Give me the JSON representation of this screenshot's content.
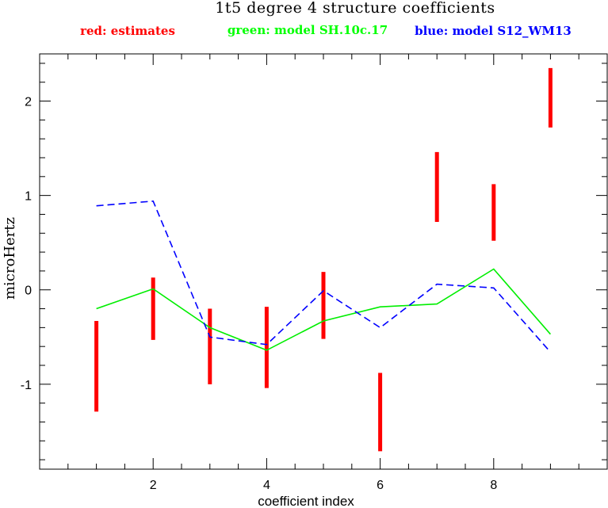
{
  "chart_data": {
    "type": "line",
    "title": "1t5 degree 4 structure coefficients",
    "xlabel": "coefficient index",
    "ylabel": "microHertz",
    "xlim": [
      0,
      10
    ],
    "ylim": [
      -1.9,
      2.5
    ],
    "x_ticks": [
      2,
      4,
      6,
      8
    ],
    "y_ticks": [
      -1,
      0,
      1,
      2
    ],
    "grid": false,
    "legend": [
      {
        "text": "red: estimates",
        "color": "#ff0000"
      },
      {
        "text": "green: model SH.10c.17",
        "color": "#00ff00"
      },
      {
        "text": "blue: model S12_WM13",
        "color": "#0000ff"
      }
    ],
    "x": [
      1,
      2,
      3,
      4,
      5,
      6,
      7,
      8,
      9
    ],
    "estimates": {
      "color": "#ff0000",
      "low": [
        -1.29,
        -0.53,
        -1.0,
        -1.04,
        -0.52,
        -1.71,
        0.72,
        0.52,
        1.72
      ],
      "high": [
        -0.33,
        0.13,
        -0.2,
        -0.18,
        0.19,
        -0.88,
        1.46,
        1.12,
        2.35
      ]
    },
    "series": [
      {
        "color": "#00ee00",
        "style": "solid",
        "values": [
          -0.2,
          0.01,
          -0.4,
          -0.64,
          -0.33,
          -0.18,
          -0.15,
          0.22,
          -0.47
        ]
      },
      {
        "color": "#0000ff",
        "style": "dashed",
        "values": [
          0.89,
          0.94,
          -0.5,
          -0.58,
          -0.01,
          -0.4,
          0.06,
          0.02,
          -0.66
        ]
      }
    ]
  }
}
